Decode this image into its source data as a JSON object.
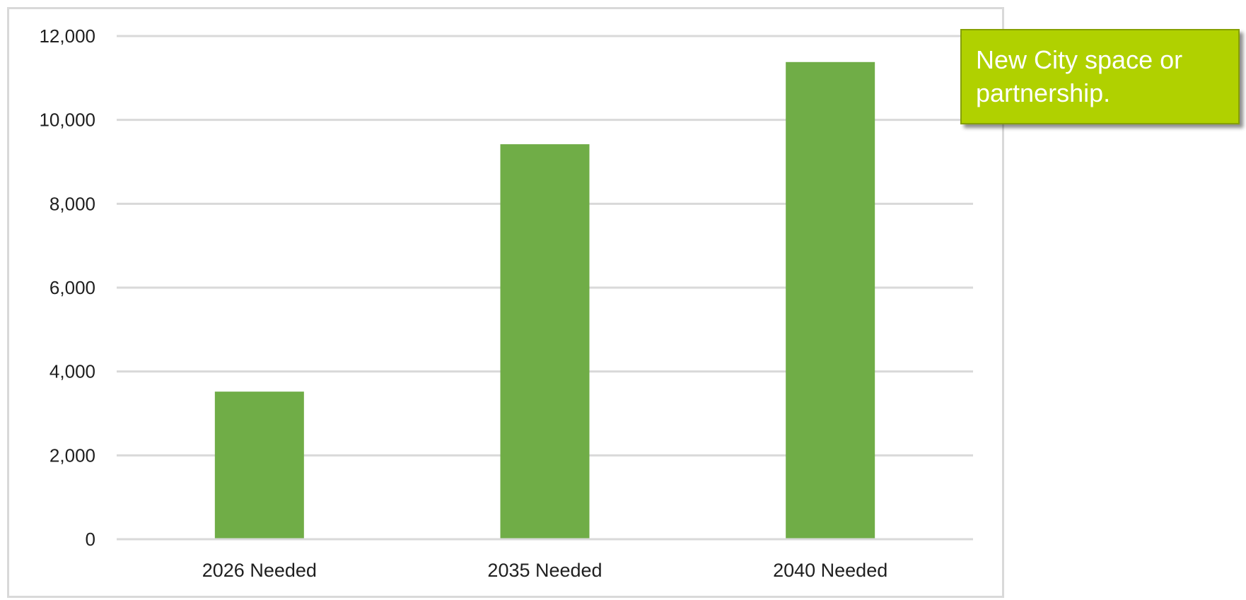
{
  "chart_data": {
    "type": "bar",
    "categories": [
      "2026 Needed",
      "2035 Needed",
      "2040 Needed"
    ],
    "values": [
      3520,
      9420,
      11380
    ],
    "ylim": [
      0,
      12000
    ],
    "yticks": [
      0,
      2000,
      4000,
      6000,
      8000,
      10000,
      12000
    ],
    "ytick_labels": [
      "0",
      "2,000",
      "4,000",
      "6,000",
      "8,000",
      "10,000",
      "12,000"
    ],
    "grid": true,
    "title": "",
    "xlabel": "",
    "ylabel": "",
    "bar_color": "#70ad47",
    "grid_color": "#d9d9d9"
  },
  "callout": {
    "text": "New City space or partnership.",
    "background": "#b0d100"
  }
}
